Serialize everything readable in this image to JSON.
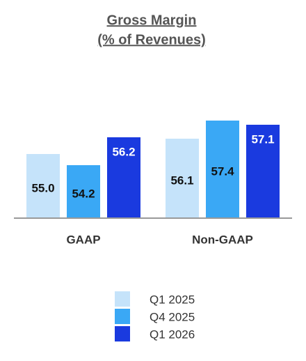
{
  "chart_data": {
    "type": "bar",
    "title": "Gross Margin",
    "subtitle": "(% of Revenues)",
    "categories": [
      "GAAP",
      "Non-GAAP"
    ],
    "series": [
      {
        "name": "Q1 2025",
        "color": "#c5e3fa",
        "values": [
          55,
          56.1
        ],
        "value_labels": [
          "55.0",
          "56.1"
        ]
      },
      {
        "name": "Q4 2025",
        "color": "#3aa8f5",
        "values": [
          54.2,
          57.4
        ],
        "value_labels": [
          "54.2",
          "57.4"
        ]
      },
      {
        "name": "Q1 2026",
        "color": "#1a3adf",
        "values": [
          56.2,
          57.1
        ],
        "value_labels": [
          "56.2",
          "57.1"
        ]
      }
    ],
    "ylim": [
      50.4,
      58
    ]
  }
}
